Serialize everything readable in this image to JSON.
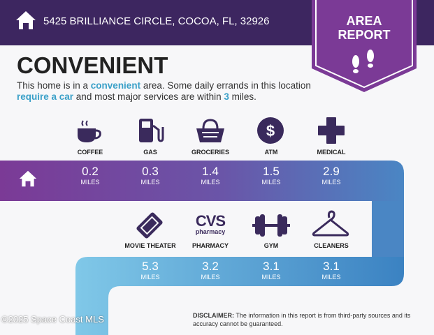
{
  "header": {
    "address": "5425 BRILLIANCE CIRCLE, COCOA, FL, 32926",
    "home_icon": "home-icon"
  },
  "badge": {
    "line1": "AREA",
    "line2": "REPORT",
    "icon": "footprints-icon",
    "color": "#7b3a96"
  },
  "title": "CONVENIENT",
  "description": {
    "p1": "This home is in a ",
    "h1": "convenient",
    "p2": " area. Some daily errands in this location ",
    "h2": "require a car",
    "p3": " and most major services are within ",
    "h3": "3",
    "p4": " miles."
  },
  "row1": [
    {
      "label": "COFFEE",
      "value": "0.2",
      "unit": "MILES",
      "icon": "coffee-cup-icon"
    },
    {
      "label": "GAS",
      "value": "0.3",
      "unit": "MILES",
      "icon": "gas-pump-icon"
    },
    {
      "label": "GROCERIES",
      "value": "1.4",
      "unit": "MILES",
      "icon": "grocery-basket-icon"
    },
    {
      "label": "ATM",
      "value": "1.5",
      "unit": "MILES",
      "icon": "dollar-icon"
    },
    {
      "label": "MEDICAL",
      "value": "2.9",
      "unit": "MILES",
      "icon": "medical-cross-icon"
    }
  ],
  "row2": [
    {
      "label": "MOVIE THEATER",
      "value": "5.3",
      "unit": "MILES",
      "icon": "ticket-icon"
    },
    {
      "label": "PHARMACY",
      "value": "3.2",
      "unit": "MILES",
      "icon": "cvs-pharmacy-logo"
    },
    {
      "label": "GYM",
      "value": "3.1",
      "unit": "MILES",
      "icon": "dumbbell-icon"
    },
    {
      "label": "CLEANERS",
      "value": "3.1",
      "unit": "MILES",
      "icon": "hanger-icon"
    }
  ],
  "cvs": {
    "l1": "CVS",
    "l2": "pharmacy"
  },
  "disclaimer": {
    "bold": "DISCLAIMER:",
    "text": " The information in this report is from third-party sources and its accuracy cannot be guaranteed."
  },
  "watermark": "©2025 Space Coast MLS",
  "colors": {
    "header": "#3d2660",
    "row1_start": "#7b3a96",
    "row1_end": "#4d7fc0",
    "row2_start": "#7ec6e6",
    "row2_end": "#3a8cc8"
  }
}
